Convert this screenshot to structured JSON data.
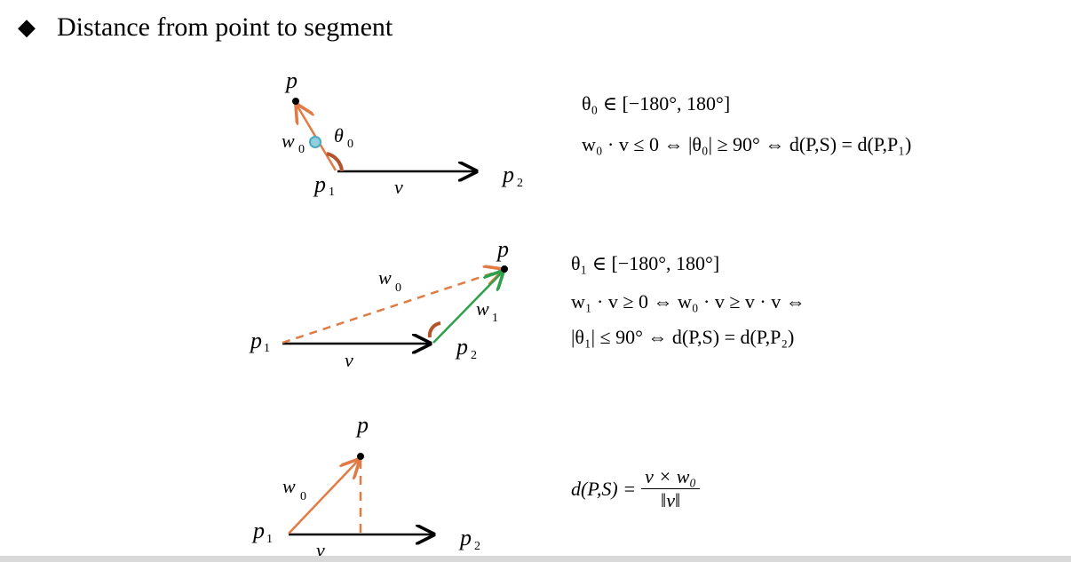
{
  "heading": {
    "bullet": "◆",
    "title": "Distance from point to segment"
  },
  "colors": {
    "orange": "#e07b45",
    "green": "#2ca04a",
    "arc": "#b5532a",
    "black": "#000000",
    "teal": "#4aa8c0"
  },
  "labels": {
    "d1_p": "p",
    "d1_w0": "w",
    "d1_w0_sub": "0",
    "d1_theta": "θ",
    "d1_theta_sub": "0",
    "d1_p1": "p",
    "d1_p1_sub": "1",
    "d1_v": "v",
    "d1_p2": "p",
    "d1_p2_sub": "2",
    "d2_p": "p",
    "d2_w0": "w",
    "d2_w0_sub": "0",
    "d2_w1": "w",
    "d2_w1_sub": "1",
    "d2_p1": "p",
    "d2_p1_sub": "1",
    "d2_v": "v",
    "d2_p2": "p",
    "d2_p2_sub": "2",
    "d3_p": "p",
    "d3_w0": "w",
    "d3_w0_sub": "0",
    "d3_p1": "p",
    "d3_p1_sub": "1",
    "d3_v": "v",
    "d3_p2": "p",
    "d3_p2_sub": "2"
  },
  "formulas": {
    "f1_line1": "θ₀ ∈ [−180°, 180°]",
    "f1_line2": "w₀ · v ≤ 0 ⇔ |θ₀| ≥ 90° ⇔ d(P,S) = d(P,P₁)",
    "f2_line1": "θ₁ ∈ [−180°, 180°]",
    "f2_line2": "w₁ · v ≥ 0 ⇔ w₀ · v ≥ v · v ⇔",
    "f2_line3": "|θ₁| ≤ 90° ⇔ d(P,S) = d(P,P₂)",
    "f3_lhs": "d(P,S) =",
    "f3_num": "v × w₀",
    "f3_den": "‖v‖"
  }
}
